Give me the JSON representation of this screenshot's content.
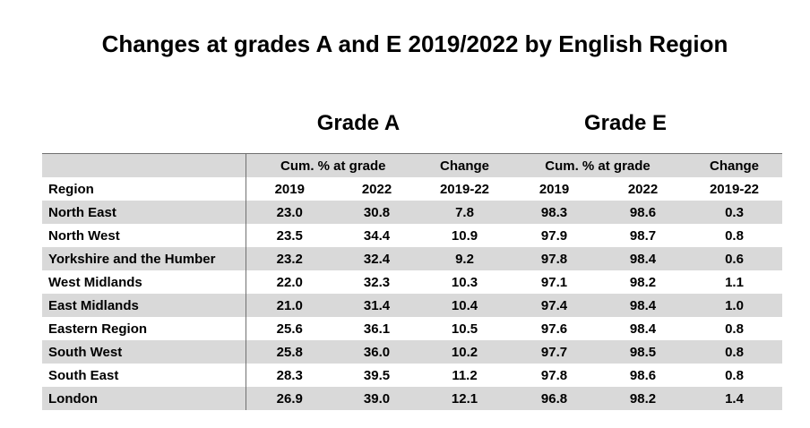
{
  "title": "Changes at grades A and E 2019/2022 by English Region",
  "groups": {
    "grade_a": "Grade A",
    "grade_e": "Grade E"
  },
  "header": {
    "cum_a": "Cum. % at grade",
    "change_a": "Change",
    "cum_e": "Cum. % at grade",
    "change_e": "Change",
    "region": "Region",
    "y2019_a": "2019",
    "y2022_a": "2022",
    "range_a": "2019-22",
    "y2019_e": "2019",
    "y2022_e": "2022",
    "range_e": "2019-22"
  },
  "rows": [
    [
      "North East",
      "23.0",
      "30.8",
      "7.8",
      "98.3",
      "98.6",
      "0.3"
    ],
    [
      "North West",
      "23.5",
      "34.4",
      "10.9",
      "97.9",
      "98.7",
      "0.8"
    ],
    [
      "Yorkshire and the Humber",
      "23.2",
      "32.4",
      "9.2",
      "97.8",
      "98.4",
      "0.6"
    ],
    [
      "West Midlands",
      "22.0",
      "32.3",
      "10.3",
      "97.1",
      "98.2",
      "1.1"
    ],
    [
      "East Midlands",
      "21.0",
      "31.4",
      "10.4",
      "97.4",
      "98.4",
      "1.0"
    ],
    [
      "Eastern Region",
      "25.6",
      "36.1",
      "10.5",
      "97.6",
      "98.4",
      "0.8"
    ],
    [
      "South West",
      "25.8",
      "36.0",
      "10.2",
      "97.7",
      "98.5",
      "0.8"
    ],
    [
      "South East",
      "28.3",
      "39.5",
      "11.2",
      "97.8",
      "98.6",
      "0.8"
    ],
    [
      "London",
      "26.9",
      "39.0",
      "12.1",
      "96.8",
      "98.2",
      "1.4"
    ]
  ]
}
